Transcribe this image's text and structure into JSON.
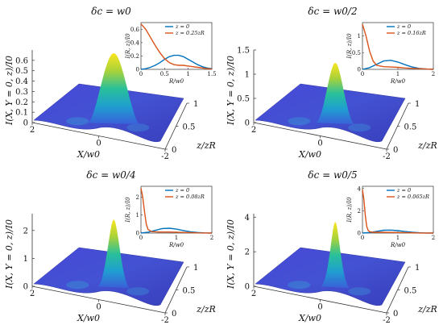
{
  "chart_data": [
    {
      "type": "surface",
      "title": "δc = w0",
      "zlabel": "I(X, Y = 0, z)/I0",
      "xlabel": "X/w0",
      "ylabel": "z/zR",
      "x_ticks": [
        "2",
        "0",
        "-2"
      ],
      "y_ticks": [
        "0",
        "0.5",
        "1"
      ],
      "z_ticks": [
        "0",
        "0.1",
        "0.2",
        "0.3",
        "0.4",
        "0.5",
        "0.6"
      ],
      "zlim": [
        0,
        0.7
      ],
      "peak": {
        "x": 0,
        "z": 1,
        "value": 0.7
      },
      "inset": {
        "xlabel": "R/w0",
        "ylabel": "I(R, z)/I0",
        "x_ticks": [
          "0",
          "0.5",
          "1",
          "1.5"
        ],
        "xlim": [
          0,
          1.5
        ],
        "y_ticks": [
          "0",
          "0.2",
          "0.4",
          "0.6"
        ],
        "ylim": [
          0,
          0.7
        ],
        "series": [
          {
            "name": "z = 0",
            "color": "#0072BD",
            "x": [
              0,
              0.1,
              0.2,
              0.3,
              0.4,
              0.5,
              0.6,
              0.7,
              0.8,
              0.9,
              1.0,
              1.1,
              1.2,
              1.3,
              1.4,
              1.5
            ],
            "y": [
              0,
              0.01,
              0.03,
              0.06,
              0.1,
              0.15,
              0.19,
              0.21,
              0.21,
              0.19,
              0.15,
              0.11,
              0.07,
              0.04,
              0.02,
              0.01
            ]
          },
          {
            "name": "z = 0.25zR",
            "color": "#D95319",
            "x": [
              0,
              0.1,
              0.2,
              0.3,
              0.4,
              0.5,
              0.6,
              0.7,
              0.8,
              0.9,
              1.0,
              1.1,
              1.2,
              1.3,
              1.4,
              1.5
            ],
            "y": [
              0.68,
              0.6,
              0.48,
              0.36,
              0.25,
              0.16,
              0.1,
              0.07,
              0.06,
              0.06,
              0.05,
              0.04,
              0.03,
              0.02,
              0.01,
              0.005
            ]
          }
        ]
      }
    },
    {
      "type": "surface",
      "title": "δc = w0/2",
      "zlabel": "I(X, Y = 0, z)/I0",
      "xlabel": "X/w0",
      "ylabel": "z/zR",
      "x_ticks": [
        "2",
        "0",
        "-2"
      ],
      "y_ticks": [
        "0",
        "0.5",
        "1"
      ],
      "z_ticks": [
        "0",
        "0.5",
        "1",
        "1.5"
      ],
      "zlim": [
        0,
        1.5
      ],
      "peak": {
        "x": 0,
        "z": 1,
        "value": 1.3
      },
      "inset": {
        "xlabel": "R/w0",
        "ylabel": "I(R, z)/I0",
        "x_ticks": [
          "0",
          "1",
          "2"
        ],
        "xlim": [
          0,
          2
        ],
        "y_ticks": [
          "0",
          "0.5",
          "1"
        ],
        "ylim": [
          0,
          1.4
        ],
        "series": [
          {
            "name": "z = 0",
            "color": "#0072BD",
            "x": [
              0,
              0.2,
              0.4,
              0.6,
              0.8,
              1.0,
              1.2,
              1.4,
              1.6,
              1.8,
              2.0
            ],
            "y": [
              0,
              0.05,
              0.15,
              0.25,
              0.27,
              0.22,
              0.14,
              0.07,
              0.03,
              0.01,
              0
            ]
          },
          {
            "name": "z = 0.16zR",
            "color": "#D95319",
            "x": [
              0,
              0.1,
              0.2,
              0.3,
              0.4,
              0.6,
              0.8,
              1.0,
              1.2,
              1.4,
              1.6,
              1.8,
              2.0
            ],
            "y": [
              1.35,
              1.0,
              0.55,
              0.25,
              0.12,
              0.08,
              0.07,
              0.06,
              0.04,
              0.03,
              0.02,
              0.01,
              0
            ]
          }
        ]
      }
    },
    {
      "type": "surface",
      "title": "δc = w0/4",
      "zlabel": "I(X, Y = 0, z)/I0",
      "xlabel": "X/w0",
      "ylabel": "z/zR",
      "x_ticks": [
        "2",
        "0",
        "-2"
      ],
      "y_ticks": [
        "0",
        "0.5",
        "1"
      ],
      "z_ticks": [
        "0",
        "1",
        "2"
      ],
      "zlim": [
        0,
        2.6
      ],
      "peak": {
        "x": 0,
        "z": 1,
        "value": 2.5
      },
      "inset": {
        "xlabel": "R/w0",
        "ylabel": "I(R, z)/I0",
        "x_ticks": [
          "0",
          "1",
          "2"
        ],
        "xlim": [
          0,
          2
        ],
        "y_ticks": [
          "0",
          "1",
          "2"
        ],
        "ylim": [
          0,
          2.6
        ],
        "series": [
          {
            "name": "z = 0",
            "color": "#0072BD",
            "x": [
              0,
              0.2,
              0.4,
              0.6,
              0.8,
              1.0,
              1.2,
              1.4,
              1.6,
              1.8,
              2.0
            ],
            "y": [
              0,
              0.05,
              0.15,
              0.25,
              0.27,
              0.22,
              0.14,
              0.07,
              0.03,
              0.01,
              0
            ]
          },
          {
            "name": "z = 0.08zR",
            "color": "#D95319",
            "x": [
              0,
              0.05,
              0.1,
              0.15,
              0.2,
              0.3,
              0.5,
              0.8,
              1.0,
              1.3,
              1.6,
              2.0
            ],
            "y": [
              2.5,
              2.0,
              1.2,
              0.5,
              0.2,
              0.08,
              0.06,
              0.06,
              0.05,
              0.03,
              0.01,
              0
            ]
          }
        ]
      }
    },
    {
      "type": "surface",
      "title": "δc = w0/5",
      "zlabel": "I(X, Y = 0, z)/I0",
      "xlabel": "X/w0",
      "ylabel": "z/zR",
      "x_ticks": [
        "2",
        "0",
        "-2"
      ],
      "y_ticks": [
        "0",
        "0.5",
        "1"
      ],
      "z_ticks": [
        "0",
        "2",
        "4"
      ],
      "zlim": [
        0,
        4.2
      ],
      "peak": {
        "x": 0,
        "z": 1,
        "value": 3.9
      },
      "inset": {
        "xlabel": "R/w0",
        "ylabel": "I(R, z)/I0",
        "x_ticks": [
          "0",
          "1",
          "2"
        ],
        "xlim": [
          0,
          2
        ],
        "y_ticks": [
          "0",
          "2",
          "4"
        ],
        "ylim": [
          0,
          4.2
        ],
        "series": [
          {
            "name": "z = 0",
            "color": "#0072BD",
            "x": [
              0,
              0.2,
              0.4,
              0.6,
              0.8,
              1.0,
              1.2,
              1.4,
              1.6,
              1.8,
              2.0
            ],
            "y": [
              0,
              0.05,
              0.15,
              0.25,
              0.27,
              0.22,
              0.14,
              0.07,
              0.03,
              0.01,
              0
            ]
          },
          {
            "name": "z = 0.065zR",
            "color": "#D95319",
            "x": [
              0,
              0.04,
              0.08,
              0.12,
              0.16,
              0.2,
              0.3,
              0.5,
              0.8,
              1.0,
              1.3,
              1.6,
              2.0
            ],
            "y": [
              3.9,
              3.0,
              1.6,
              0.6,
              0.25,
              0.12,
              0.08,
              0.07,
              0.06,
              0.05,
              0.03,
              0.01,
              0
            ]
          }
        ]
      }
    }
  ]
}
